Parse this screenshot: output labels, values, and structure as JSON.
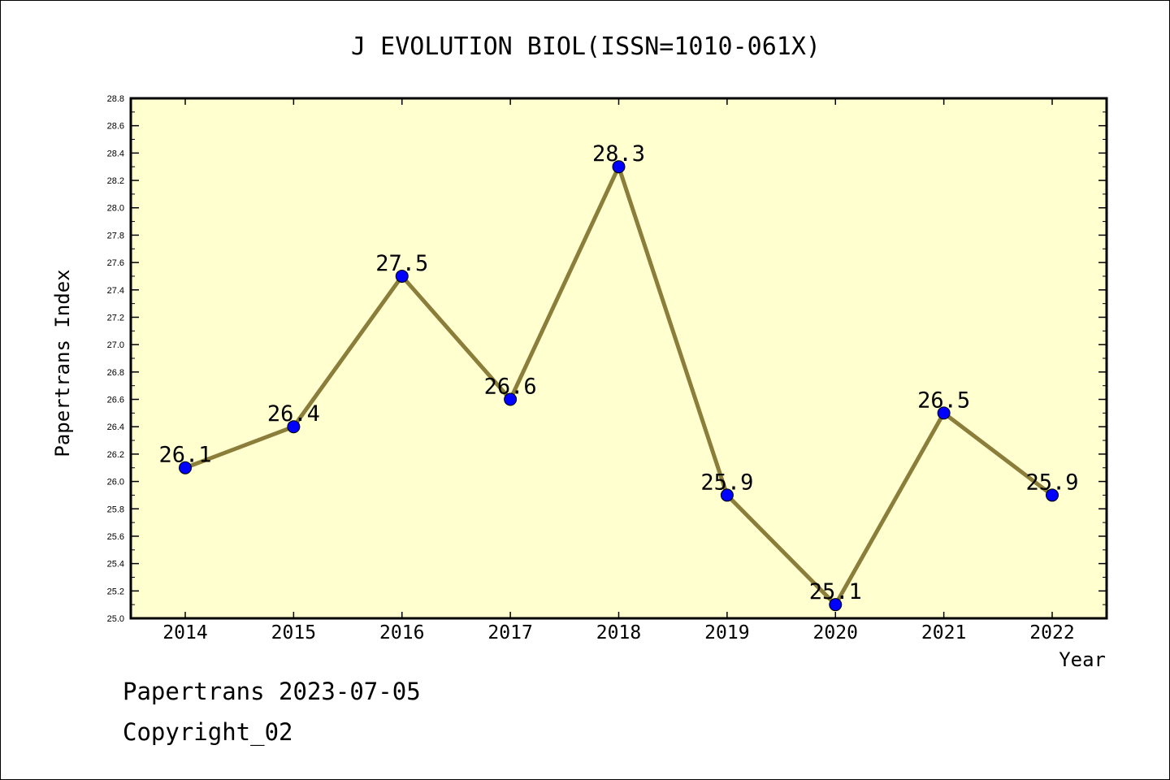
{
  "chart_data": {
    "type": "line",
    "title": "J EVOLUTION BIOL(ISSN=1010-061X)",
    "xlabel": "Year",
    "ylabel": "Papertrans Index",
    "categories": [
      "2014",
      "2015",
      "2016",
      "2017",
      "2018",
      "2019",
      "2020",
      "2021",
      "2022"
    ],
    "series": [
      {
        "values": [
          26.1,
          26.4,
          27.5,
          26.6,
          28.3,
          25.9,
          25.1,
          26.5,
          25.9
        ],
        "data_labels": [
          "26.1",
          "26.4",
          "27.5",
          "26.6",
          "28.3",
          "25.9",
          "25.1",
          "26.5",
          "25.9"
        ]
      }
    ],
    "ylim": [
      25.0,
      28.8
    ],
    "yticks": [
      "25.0",
      "25.2",
      "25.4",
      "25.6",
      "25.8",
      "26.0",
      "26.2",
      "26.4",
      "26.6",
      "26.8",
      "27.0",
      "27.2",
      "27.4",
      "27.6",
      "27.8",
      "28.0",
      "28.2",
      "28.4",
      "28.6",
      "28.8"
    ],
    "grid": false,
    "colors": {
      "plot_background": "#ffffd0",
      "line": "#8b7d3a",
      "marker": "#0000ff"
    }
  },
  "footer": {
    "line1": "Papertrans 2023-07-05",
    "line2": "Copyright_02"
  }
}
